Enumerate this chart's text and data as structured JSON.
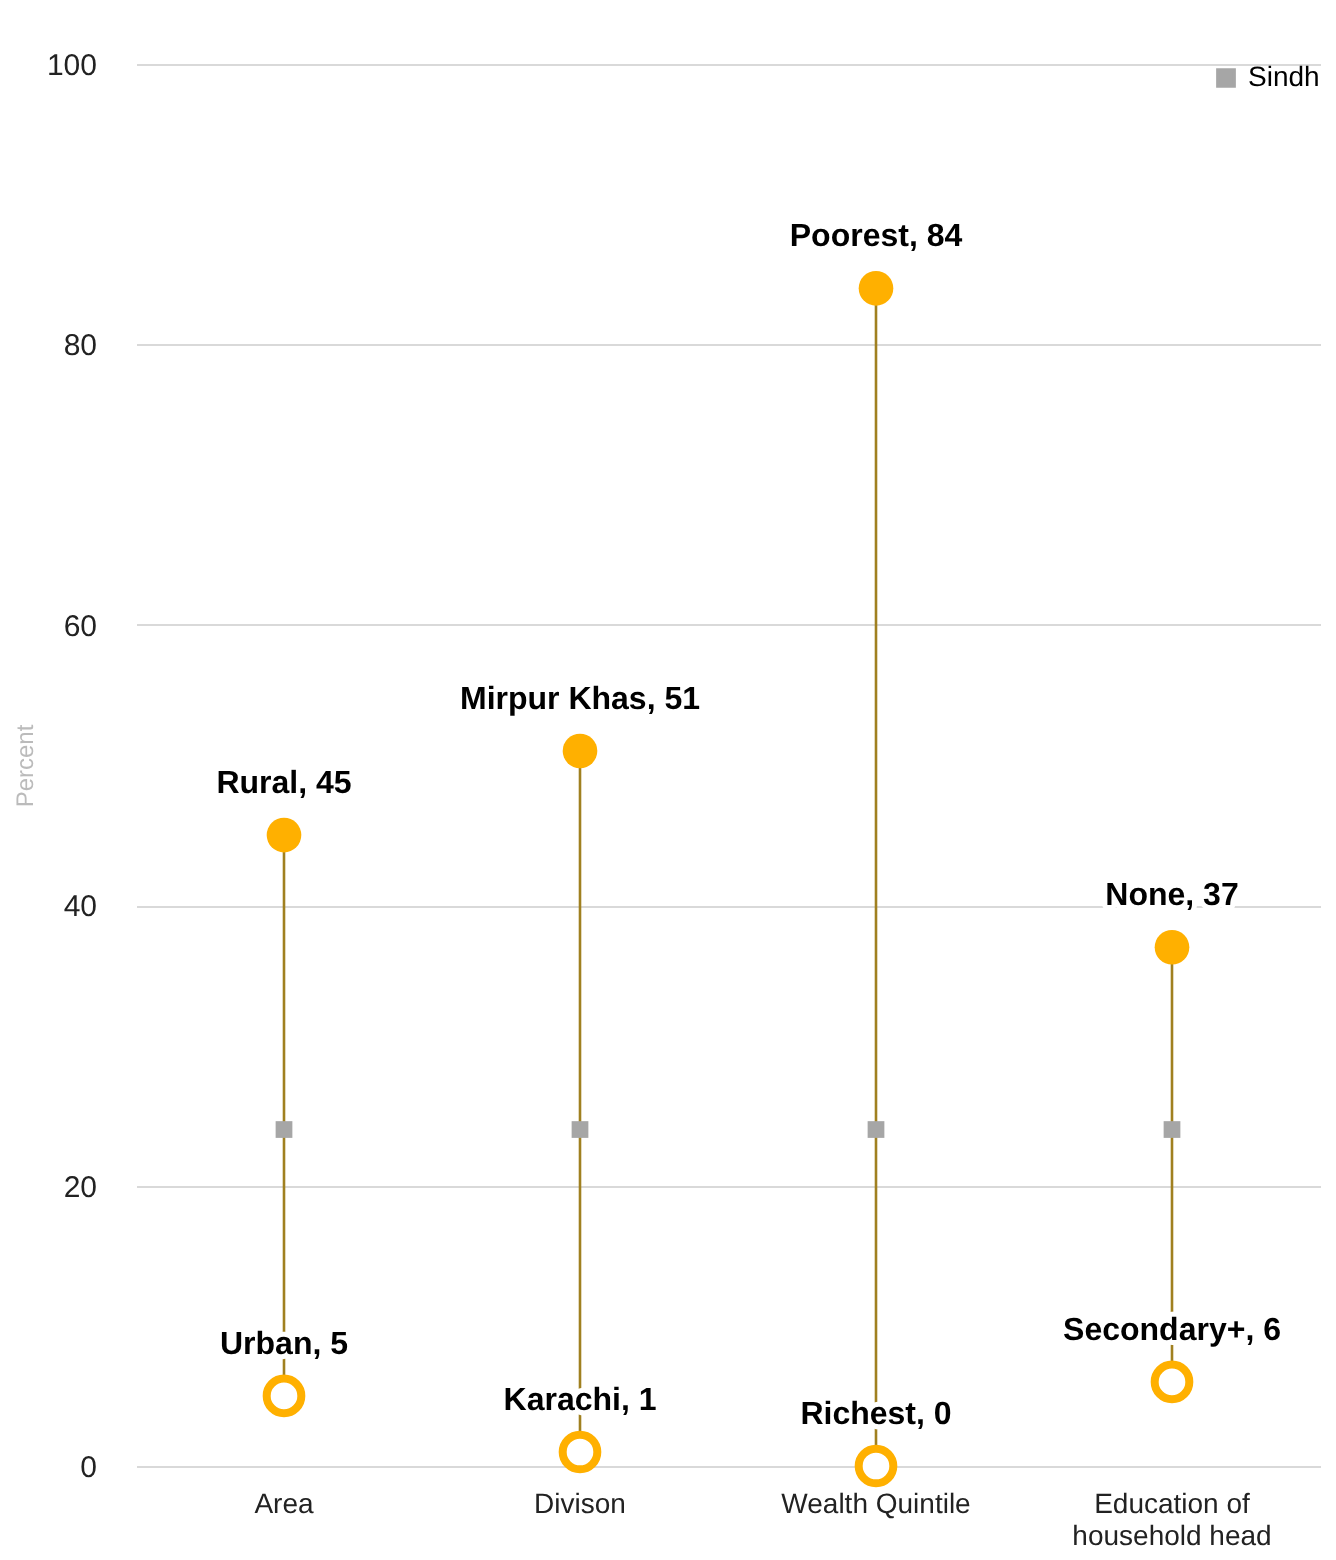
{
  "chart_data": {
    "type": "scatter",
    "ylabel": "Percent",
    "categories": [
      "Area",
      "Divison",
      "Wealth Quintile",
      "Education of household head"
    ],
    "ylim": [
      0,
      100
    ],
    "yticks": [
      0,
      20,
      40,
      60,
      80,
      100
    ],
    "grid": "y",
    "legend": "top right",
    "marker": "circle",
    "series": [
      {
        "color": "#ffb000",
        "values": [
          45,
          51,
          84,
          37
        ],
        "value_labels": [
          "Rural, 45",
          "Mirpur Khas, 51",
          "Poorest, 84",
          "None, 37"
        ]
      },
      {
        "color": "#ffb000",
        "values": [
          5,
          1,
          0,
          6
        ],
        "value_labels": [
          "Urban, 5",
          "Karachi, 1",
          "Richest, 0",
          "Secondary+, 6"
        ]
      },
      {
        "name": "Sindh",
        "color": "#a6a6a6",
        "marker": "square",
        "values": [
          24,
          24,
          24,
          24
        ]
      }
    ]
  }
}
